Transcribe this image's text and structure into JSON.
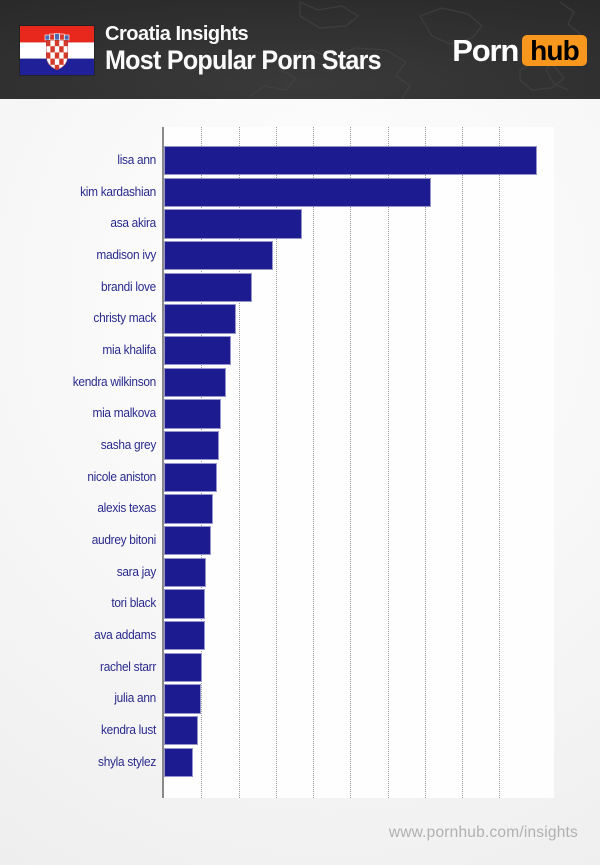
{
  "header": {
    "subtitle": "Croatia Insights",
    "title": "Most Popular Porn Stars",
    "brand": {
      "word1": "Porn",
      "word2": "hub"
    },
    "flag_icon": "croatia-flag-icon",
    "decoration": "faint-world-map-outline"
  },
  "footer": {
    "url": "www.pornhub.com/insights"
  },
  "colors": {
    "header_bg": "#2c2c2c",
    "brand_orange": "#f7971d",
    "bar_fill": "#1c1c90",
    "bar_edge": "#9595cc",
    "label_text": "#2a2a8e",
    "grid": "#9b9b9b",
    "axis": "#8a8a8a",
    "footer_text": "#b1b1b1",
    "plot_bg": "#fffefe"
  },
  "chart_data": {
    "type": "bar",
    "orientation": "horizontal",
    "title": "Most Popular Porn Stars",
    "xlabel": "",
    "ylabel": "",
    "categories": [
      "lisa ann",
      "kim kardashian",
      "asa akira",
      "madison ivy",
      "brandi love",
      "christy mack",
      "mia khalifa",
      "kendra wilkinson",
      "mia malkova",
      "sasha grey",
      "nicole aniston",
      "alexis texas",
      "audrey bitoni",
      "sara jay",
      "tori black",
      "ava addams",
      "rachel starr",
      "julia ann",
      "kendra lust",
      "shyla stylez"
    ],
    "values": [
      100,
      71.6,
      36.9,
      29.3,
      23.5,
      19.3,
      17.9,
      16.6,
      15.2,
      14.8,
      14.2,
      13.1,
      12.7,
      11.3,
      11.1,
      11.0,
      10.2,
      9.8,
      9.0,
      7.9
    ],
    "values_note": "no numeric axis labels shown; values estimated from bar lengths with longest bar = 100",
    "xlim": [
      0,
      104
    ],
    "grid": {
      "style": "dotted-vertical",
      "positions": [
        10,
        20,
        30,
        40,
        50,
        60,
        70,
        80,
        90
      ]
    },
    "legend": "none"
  }
}
